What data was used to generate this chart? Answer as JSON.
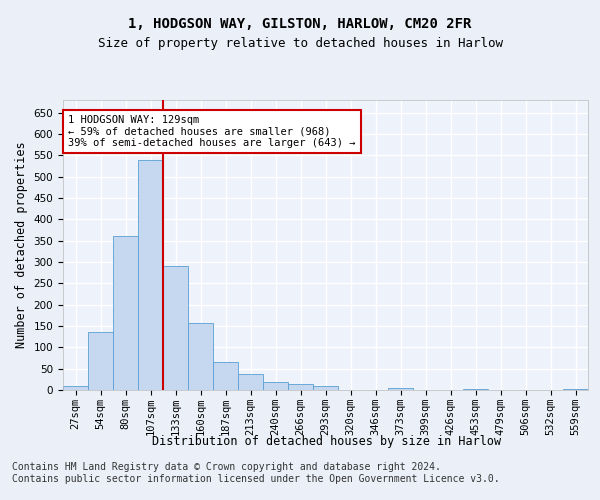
{
  "title_line1": "1, HODGSON WAY, GILSTON, HARLOW, CM20 2FR",
  "title_line2": "Size of property relative to detached houses in Harlow",
  "xlabel": "Distribution of detached houses by size in Harlow",
  "ylabel": "Number of detached properties",
  "categories": [
    "27sqm",
    "54sqm",
    "80sqm",
    "107sqm",
    "133sqm",
    "160sqm",
    "187sqm",
    "213sqm",
    "240sqm",
    "266sqm",
    "293sqm",
    "320sqm",
    "346sqm",
    "373sqm",
    "399sqm",
    "426sqm",
    "453sqm",
    "479sqm",
    "506sqm",
    "532sqm",
    "559sqm"
  ],
  "values": [
    10,
    135,
    362,
    540,
    290,
    158,
    65,
    38,
    18,
    15,
    10,
    0,
    0,
    4,
    0,
    0,
    3,
    0,
    0,
    0,
    3
  ],
  "bar_color": "#c5d8f0",
  "bar_edge_color": "#5a9fd4",
  "property_line_color": "#cc0000",
  "annotation_text": "1 HODGSON WAY: 129sqm\n← 59% of detached houses are smaller (968)\n39% of semi-detached houses are larger (643) →",
  "annotation_box_color": "#ffffff",
  "annotation_box_edge": "#cc0000",
  "ylim": [
    0,
    680
  ],
  "yticks": [
    0,
    50,
    100,
    150,
    200,
    250,
    300,
    350,
    400,
    450,
    500,
    550,
    600,
    650
  ],
  "footer": "Contains HM Land Registry data © Crown copyright and database right 2024.\nContains public sector information licensed under the Open Government Licence v3.0.",
  "bg_color": "#eaeff8",
  "plot_bg_color": "#eef2fb",
  "grid_color": "#ffffff",
  "title_fontsize": 10,
  "subtitle_fontsize": 9,
  "axis_label_fontsize": 8.5,
  "tick_fontsize": 7.5,
  "footer_fontsize": 7,
  "annot_fontsize": 7.5
}
